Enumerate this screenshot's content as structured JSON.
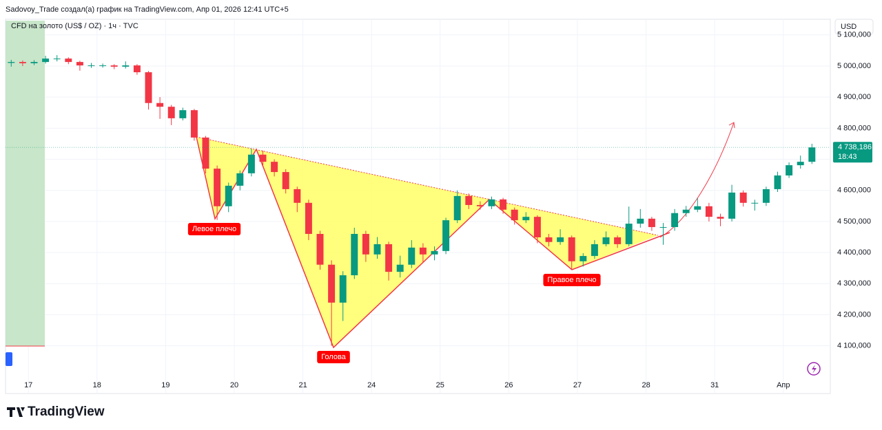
{
  "header": "Sadovoy_Trade создал(а) график на TradingView.com, Апр 01, 2026 12:41 UTC+5",
  "footer_logo": "TradingView",
  "chart_data": {
    "type": "candlestick",
    "title": "CFD на золото (US$ / OZ) · 1ч · TVC",
    "currency": "USD",
    "categories": [
      null,
      null,
      "17",
      null,
      null,
      null,
      null,
      null,
      "18",
      null,
      null,
      null,
      null,
      null,
      "19",
      null,
      null,
      null,
      null,
      null,
      "20",
      null,
      null,
      null,
      null,
      null,
      "21",
      null,
      null,
      null,
      null,
      null,
      "24",
      null,
      null,
      null,
      null,
      null,
      "25",
      null,
      null,
      null,
      null,
      null,
      "26",
      null,
      null,
      null,
      null,
      null,
      "27",
      null,
      null,
      null,
      null,
      null,
      "28",
      null,
      null,
      null,
      null,
      null,
      "31",
      null,
      null,
      null,
      null,
      null,
      "Апр",
      null,
      null
    ],
    "open": [
      5010,
      5013,
      5009,
      5013,
      5024,
      5024,
      5013,
      5002,
      5002,
      5002,
      4998,
      5002,
      4980,
      4881,
      4869,
      4832,
      4858,
      4770,
      4670,
      4549,
      4615,
      4655,
      4715,
      4692,
      4659,
      4604,
      4560,
      4460,
      4361,
      4239,
      4327,
      4460,
      4394,
      4427,
      4338,
      4361,
      4416,
      4394,
      4405,
      4504,
      4582,
      4553,
      4549,
      4571,
      4538,
      4504,
      4515,
      4449,
      4434,
      4449,
      4372,
      4389,
      4427,
      4449,
      4427,
      4493,
      4509,
      4482,
      4482,
      4527,
      4538,
      4549,
      4515,
      4509,
      4593,
      4560,
      4560,
      4604,
      4648,
      4681,
      4692
    ],
    "high": [
      5020,
      5018,
      5019,
      5033,
      5035,
      5028,
      5017,
      5010,
      5008,
      5006,
      5015,
      5006,
      4984,
      4900,
      4875,
      4866,
      4862,
      4775,
      4680,
      4625,
      4664,
      4735,
      4728,
      4700,
      4668,
      4612,
      4570,
      4470,
      4375,
      4340,
      4480,
      4470,
      4450,
      4435,
      4390,
      4440,
      4430,
      4420,
      4512,
      4600,
      4590,
      4565,
      4580,
      4576,
      4545,
      4530,
      4520,
      4460,
      4475,
      4455,
      4398,
      4440,
      4468,
      4455,
      4548,
      4540,
      4515,
      4495,
      4540,
      4550,
      4575,
      4560,
      4525,
      4618,
      4600,
      4570,
      4612,
      4660,
      4690,
      4712,
      4750
    ],
    "low": [
      4998,
      5000,
      5003,
      5008,
      5015,
      5006,
      4985,
      4994,
      4995,
      4990,
      4992,
      4972,
      4860,
      4830,
      4810,
      4825,
      4760,
      4655,
      4505,
      4530,
      4600,
      4645,
      4680,
      4645,
      4590,
      4530,
      4440,
      4345,
      4100,
      4180,
      4315,
      4370,
      4380,
      4310,
      4320,
      4350,
      4370,
      4375,
      4395,
      4495,
      4540,
      4538,
      4540,
      4525,
      4490,
      4495,
      4430,
      4420,
      4425,
      4345,
      4355,
      4380,
      4420,
      4415,
      4420,
      4480,
      4470,
      4425,
      4470,
      4515,
      4530,
      4500,
      4485,
      4500,
      4548,
      4535,
      4550,
      4595,
      4640,
      4670,
      4685
    ],
    "close": [
      5013,
      5009,
      5013,
      5024,
      5024,
      5013,
      5002,
      5002,
      5002,
      4998,
      5002,
      4980,
      4881,
      4869,
      4832,
      4858,
      4770,
      4670,
      4549,
      4615,
      4655,
      4715,
      4692,
      4659,
      4604,
      4560,
      4460,
      4361,
      4239,
      4327,
      4460,
      4394,
      4427,
      4338,
      4361,
      4416,
      4394,
      4405,
      4504,
      4582,
      4553,
      4549,
      4571,
      4538,
      4504,
      4515,
      4449,
      4434,
      4449,
      4372,
      4389,
      4427,
      4449,
      4427,
      4493,
      4509,
      4482,
      4482,
      4527,
      4538,
      4549,
      4515,
      4509,
      4593,
      4560,
      4560,
      4604,
      4648,
      4681,
      4692,
      4738.186
    ],
    "up_color": "#089981",
    "down_color": "#f23645",
    "ylim": [
      3951,
      5146
    ],
    "yticks": [
      {
        "value": 4100,
        "label": "4 100,000"
      },
      {
        "value": 4200,
        "label": "4 200,000"
      },
      {
        "value": 4300,
        "label": "4 300,000"
      },
      {
        "value": 4400,
        "label": "4 400,000"
      },
      {
        "value": 4500,
        "label": "4 500,000"
      },
      {
        "value": 4600,
        "label": "4 600,000"
      },
      {
        "value": 4700,
        "label": "4 700,000"
      },
      {
        "value": 4800,
        "label": "4 800,000"
      },
      {
        "value": 4900,
        "label": "4 900,000"
      },
      {
        "value": 5000,
        "label": "5 000,000"
      },
      {
        "value": 5100,
        "label": "5 100,000"
      }
    ],
    "grid": true,
    "last_price": {
      "value": 4738.186,
      "label": "4 738,186"
    },
    "countdown": "18:43",
    "annotations": [
      "Левое плечо",
      "Голова",
      "Правое плечо"
    ]
  }
}
